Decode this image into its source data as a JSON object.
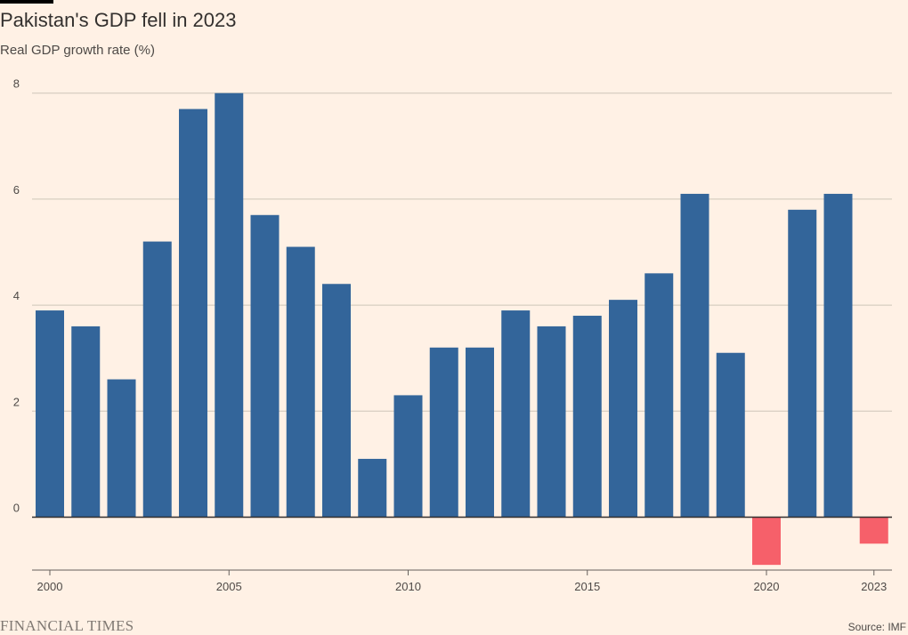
{
  "title": "Pakistan's GDP fell in 2023",
  "subtitle": "Real GDP growth rate (%)",
  "brand": "FINANCIAL TIMES",
  "source": "Source: IMF",
  "colors": {
    "background": "#FFF1E5",
    "positive": "#33659A",
    "negative": "#F6606A",
    "gridline": "#CEC6B9",
    "zero_line": "#33302E",
    "axis": "#66605C"
  },
  "chart_data": {
    "type": "bar",
    "title": "Pakistan's GDP fell in 2023",
    "subtitle": "Real GDP growth rate (%)",
    "xlabel": "",
    "ylabel": "",
    "x_ticks": [
      "2000",
      "2005",
      "2010",
      "2015",
      "2020",
      "2023"
    ],
    "y_ticks": [
      "0",
      "2",
      "4",
      "6",
      "8"
    ],
    "ylim": [
      -1,
      8.5
    ],
    "grid": true,
    "legend": "none",
    "categories": [
      "2000",
      "2001",
      "2002",
      "2003",
      "2004",
      "2005",
      "2006",
      "2007",
      "2008",
      "2009",
      "2010",
      "2011",
      "2012",
      "2013",
      "2014",
      "2015",
      "2016",
      "2017",
      "2018",
      "2019",
      "2020",
      "2021",
      "2022",
      "2023"
    ],
    "values": [
      3.9,
      3.6,
      2.6,
      5.2,
      7.7,
      8.0,
      5.7,
      5.1,
      4.4,
      1.1,
      2.3,
      3.2,
      3.2,
      3.9,
      3.6,
      3.8,
      4.1,
      4.6,
      6.1,
      3.1,
      -0.9,
      5.8,
      6.1,
      -0.5
    ]
  }
}
